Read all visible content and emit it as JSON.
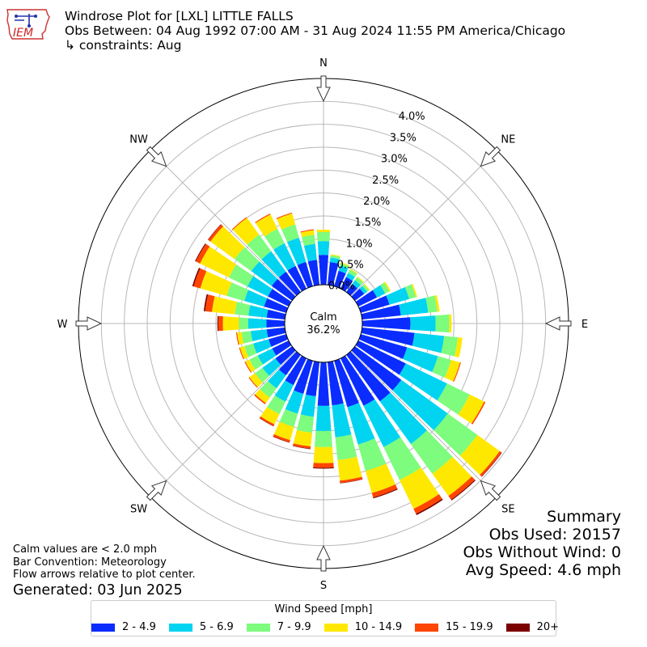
{
  "title": {
    "line1": "Windrose Plot for [LXL] LITTLE FALLS",
    "line2": "Obs Between: 04 Aug 1992 07:00 AM - 31 Aug 2024 11:55 PM America/Chicago",
    "line3": "↳ constraints: Aug"
  },
  "logo": {
    "text": "IEM"
  },
  "summary": {
    "heading": "Summary",
    "obs_used": "Obs Used: 20157",
    "obs_without_wind": "Obs Without Wind: 0",
    "avg_speed": "Avg Speed: 4.6 mph"
  },
  "notes": {
    "calm_note": "Calm values are < 2.0 mph",
    "bar_convention": "Bar Convention: Meteorology",
    "flow_arrows": "Flow arrows relative to plot center.",
    "generated": "Generated: 03 Jun 2025"
  },
  "chart_data": {
    "type": "windrose",
    "calm_label": "Calm",
    "calm_value": "36.2%",
    "radial_labels": [
      "0.0%",
      "0.5%",
      "1.0%",
      "1.5%",
      "2.0%",
      "2.5%",
      "3.0%",
      "3.5%",
      "4.0%"
    ],
    "radial_max_pct": 4.5,
    "direction_labels": [
      "N",
      "NE",
      "E",
      "SE",
      "S",
      "SW",
      "W",
      "NW"
    ],
    "direction_degrees": [
      0,
      45,
      90,
      135,
      180,
      225,
      270,
      315
    ],
    "bin_directions_deg": [
      0,
      10,
      20,
      30,
      40,
      50,
      60,
      70,
      80,
      90,
      100,
      110,
      120,
      130,
      140,
      150,
      160,
      170,
      180,
      190,
      200,
      210,
      220,
      230,
      240,
      250,
      260,
      270,
      280,
      290,
      300,
      310,
      320,
      330,
      340,
      350
    ],
    "legend_title": "Wind Speed [mph]",
    "series": [
      {
        "name": "2 - 4.9",
        "color": "#0a2cff",
        "values": [
          0.65,
          0.5,
          0.35,
          0.28,
          0.22,
          0.25,
          0.45,
          0.65,
          0.85,
          1.05,
          1.15,
          1.05,
          1.15,
          1.25,
          1.25,
          1.15,
          1.05,
          0.95,
          0.95,
          0.75,
          0.75,
          0.65,
          0.55,
          0.45,
          0.4,
          0.4,
          0.4,
          0.4,
          0.4,
          0.5,
          0.5,
          0.55,
          0.55,
          0.55,
          0.55,
          0.55
        ]
      },
      {
        "name": "5 - 6.9",
        "color": "#00d4f0",
        "values": [
          0.3,
          0.1,
          0.12,
          0.1,
          0.1,
          0.08,
          0.2,
          0.45,
          0.6,
          0.55,
          0.65,
          0.7,
          1.0,
          1.25,
          1.15,
          1.0,
          0.85,
          0.7,
          0.55,
          0.45,
          0.45,
          0.4,
          0.35,
          0.35,
          0.35,
          0.35,
          0.35,
          0.4,
          0.4,
          0.45,
          0.5,
          0.55,
          0.55,
          0.55,
          0.55,
          0.35
        ]
      },
      {
        "name": "7 - 9.9",
        "color": "#7dfc7d",
        "values": [
          0.2,
          0.05,
          0.05,
          0.08,
          0.08,
          0.05,
          0.1,
          0.15,
          0.2,
          0.3,
          0.3,
          0.3,
          0.55,
          0.8,
          0.8,
          0.8,
          0.6,
          0.5,
          0.35,
          0.35,
          0.3,
          0.3,
          0.25,
          0.2,
          0.2,
          0.2,
          0.2,
          0.2,
          0.3,
          0.4,
          0.45,
          0.45,
          0.45,
          0.35,
          0.3,
          0.2
        ]
      },
      {
        "name": "10 - 14.9",
        "color": "#ffe800",
        "values": [
          0.05,
          0.02,
          0.02,
          0.02,
          0.02,
          0.02,
          0.03,
          0.03,
          0.05,
          0.05,
          0.1,
          0.2,
          0.35,
          0.6,
          0.6,
          0.7,
          0.5,
          0.45,
          0.35,
          0.3,
          0.3,
          0.25,
          0.15,
          0.15,
          0.1,
          0.1,
          0.1,
          0.35,
          0.5,
          0.6,
          0.7,
          0.65,
          0.45,
          0.35,
          0.25,
          0.1
        ]
      },
      {
        "name": "15 - 19.9",
        "color": "#ff4500",
        "values": [
          0,
          0,
          0,
          0,
          0,
          0,
          0,
          0,
          0,
          0,
          0,
          0.02,
          0.03,
          0.05,
          0.1,
          0.12,
          0.1,
          0.05,
          0.1,
          0.05,
          0.05,
          0.04,
          0.03,
          0.02,
          0.02,
          0.02,
          0.02,
          0.1,
          0.15,
          0.15,
          0.1,
          0.06,
          0.02,
          0.02,
          0.02,
          0.02
        ]
      },
      {
        "name": "20+",
        "color": "#7b0000",
        "values": [
          0,
          0,
          0,
          0,
          0,
          0,
          0,
          0,
          0,
          0,
          0,
          0,
          0,
          0.01,
          0.02,
          0.03,
          0.02,
          0.01,
          0.02,
          0.01,
          0.01,
          0.01,
          0,
          0,
          0,
          0,
          0,
          0.02,
          0.03,
          0.03,
          0.02,
          0.01,
          0,
          0,
          0,
          0
        ]
      }
    ],
    "grid": true
  }
}
